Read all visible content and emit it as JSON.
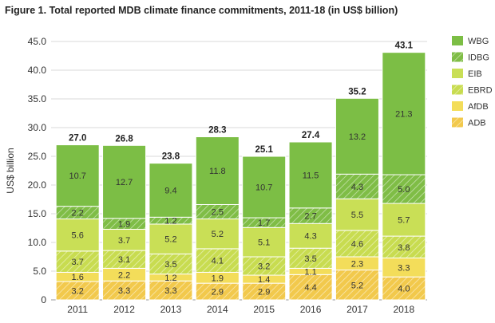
{
  "chart_data": {
    "type": "bar",
    "stacked": true,
    "title": "Figure 1. Total reported MDB climate finance commitments, 2011-18 (in US$ billion)",
    "xlabel": "",
    "ylabel": "US$ billion",
    "ylim": [
      0,
      45
    ],
    "yticks": [
      "0",
      "5.0",
      "10.0",
      "15.0",
      "20.0",
      "25.0",
      "30.0",
      "35.0",
      "40.0",
      "45.0"
    ],
    "grid": true,
    "legend_position": "right",
    "categories": [
      "2011",
      "2012",
      "2013",
      "2014",
      "2015",
      "2016",
      "2017",
      "2018"
    ],
    "totals": [
      "27.0",
      "26.8",
      "23.8",
      "28.3",
      "25.1",
      "27.4",
      "35.2",
      "43.1"
    ],
    "series": [
      {
        "name": "ADB",
        "color": "#f2c94c",
        "pattern": "hatch",
        "values": [
          3.2,
          3.3,
          3.3,
          2.9,
          2.9,
          4.4,
          5.2,
          4.0
        ],
        "labels": [
          "3.2",
          "3.3",
          "3.3",
          "2.9",
          "2.9",
          "4.4",
          "5.2",
          "4.0"
        ]
      },
      {
        "name": "AfDB",
        "color": "#f3dd5a",
        "pattern": "solid",
        "values": [
          1.6,
          2.2,
          1.2,
          1.9,
          1.4,
          1.1,
          2.3,
          3.3
        ],
        "labels": [
          "1.6",
          "2.2",
          "1.2",
          "1.9",
          "1.4",
          "1.1",
          "2.3",
          "3.3"
        ]
      },
      {
        "name": "EBRD",
        "color": "#c8dc50",
        "pattern": "hatch",
        "values": [
          3.7,
          3.1,
          3.5,
          4.1,
          3.2,
          3.5,
          4.6,
          3.8
        ],
        "labels": [
          "3.7",
          "3.1",
          "3.5",
          "4.1",
          "3.2",
          "3.5",
          "4.6",
          "3.8"
        ]
      },
      {
        "name": "EIB",
        "color": "#c9df56",
        "pattern": "solid",
        "values": [
          5.6,
          3.7,
          5.2,
          5.2,
          5.1,
          4.3,
          5.5,
          5.7
        ],
        "labels": [
          "5.6",
          "3.7",
          "5.2",
          "5.2",
          "5.1",
          "4.3",
          "5.5",
          "5.7"
        ]
      },
      {
        "name": "IDBG",
        "color": "#7fbd46",
        "pattern": "hatch",
        "values": [
          2.2,
          1.9,
          1.2,
          2.5,
          1.7,
          2.7,
          4.3,
          5.0
        ],
        "labels": [
          "2.2",
          "1.9",
          "1.2",
          "2.5",
          "1.7",
          "2.7",
          "4.3",
          "5.0"
        ]
      },
      {
        "name": "WBG",
        "color": "#7cbe45",
        "pattern": "solid",
        "values": [
          10.7,
          12.7,
          9.4,
          11.8,
          10.7,
          11.5,
          13.2,
          21.3
        ],
        "labels": [
          "10.7",
          "12.7",
          "9.4",
          "11.8",
          "10.7",
          "11.5",
          "13.2",
          "21.3"
        ]
      }
    ]
  }
}
